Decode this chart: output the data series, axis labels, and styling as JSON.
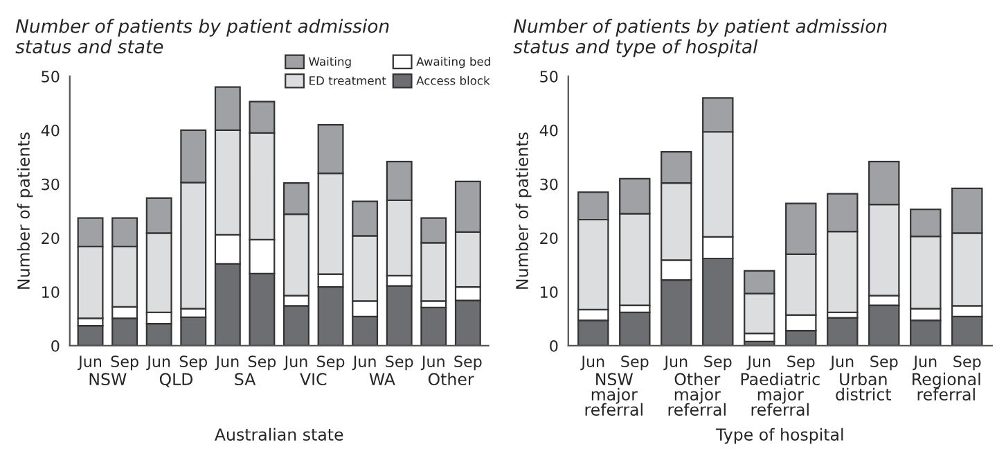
{
  "chart_data": [
    {
      "type": "bar",
      "stacked": true,
      "title": "Number of patients by patient admission\nstatus and state",
      "xlabel": "Australian state",
      "ylabel": "Number of patients",
      "categories": [
        "Jun",
        "Sep",
        "Jun",
        "Sep",
        "Jun",
        "Sep",
        "Jun",
        "Sep",
        "Jun",
        "Sep",
        "Jun",
        "Sep"
      ],
      "annotations": [
        "NSW",
        "QLD",
        "SA",
        "VIC",
        "WA",
        "Other"
      ],
      "series": [
        {
          "name": "Access block",
          "color": "#6d6e71",
          "values": [
            3.7,
            5.1,
            4.1,
            5.3,
            15.2,
            13.4,
            7.4,
            10.9,
            5.4,
            11.1,
            7.1,
            8.4
          ]
        },
        {
          "name": "Awaiting bed",
          "color": "#ffffff",
          "values": [
            1.4,
            2.1,
            2.1,
            1.6,
            5.4,
            6.3,
            1.9,
            2.4,
            2.9,
            1.9,
            1.2,
            2.5
          ]
        },
        {
          "name": "ED treatment",
          "color": "#dcdddf",
          "values": [
            13.3,
            11.2,
            14.7,
            23.4,
            19.4,
            19.8,
            15.1,
            18.7,
            12.1,
            14.0,
            10.8,
            10.2
          ]
        },
        {
          "name": "Waiting",
          "color": "#a0a1a4",
          "values": [
            5.3,
            5.3,
            6.5,
            9.7,
            8.0,
            5.8,
            5.8,
            9.0,
            6.4,
            7.2,
            4.6,
            9.4
          ]
        }
      ],
      "ylim": [
        0,
        50
      ],
      "yticks": [
        0,
        10,
        20,
        30,
        40,
        50
      ],
      "grid": false,
      "legend": "top right"
    },
    {
      "type": "bar",
      "stacked": true,
      "title": "Number of patients by patient admission\nstatus and type of hospital",
      "xlabel": "Type of hospital",
      "ylabel": "Number of patients",
      "categories": [
        "Jun",
        "Sep",
        "Jun",
        "Sep",
        "Jun",
        "Sep",
        "Jun",
        "Sep",
        "Jun",
        "Sep"
      ],
      "annotations": [
        "NSW\nmajor\nreferral",
        "Other\nmajor\nreferral",
        "Paediatric\nmajor\nreferral",
        "Urban\ndistrict",
        "Regional\nreferral"
      ],
      "series": [
        {
          "color": "#6d6e71",
          "values": [
            4.7,
            6.2,
            12.2,
            16.2,
            0.8,
            2.8,
            5.2,
            7.5,
            4.7,
            5.4
          ]
        },
        {
          "color": "#ffffff",
          "values": [
            2.0,
            1.3,
            3.7,
            4.0,
            1.5,
            2.9,
            1.0,
            1.8,
            2.2,
            2.0
          ]
        },
        {
          "color": "#dcdddf",
          "values": [
            16.7,
            17.0,
            14.3,
            19.5,
            7.4,
            11.3,
            15.0,
            16.9,
            13.4,
            13.5
          ]
        },
        {
          "color": "#a0a1a4",
          "values": [
            5.1,
            6.5,
            5.8,
            6.3,
            4.2,
            9.4,
            7.0,
            8.0,
            5.0,
            8.3
          ]
        }
      ],
      "ylim": [
        0,
        50
      ],
      "yticks": [
        0,
        10,
        20,
        30,
        40,
        50
      ],
      "grid": false,
      "legend": false
    }
  ]
}
